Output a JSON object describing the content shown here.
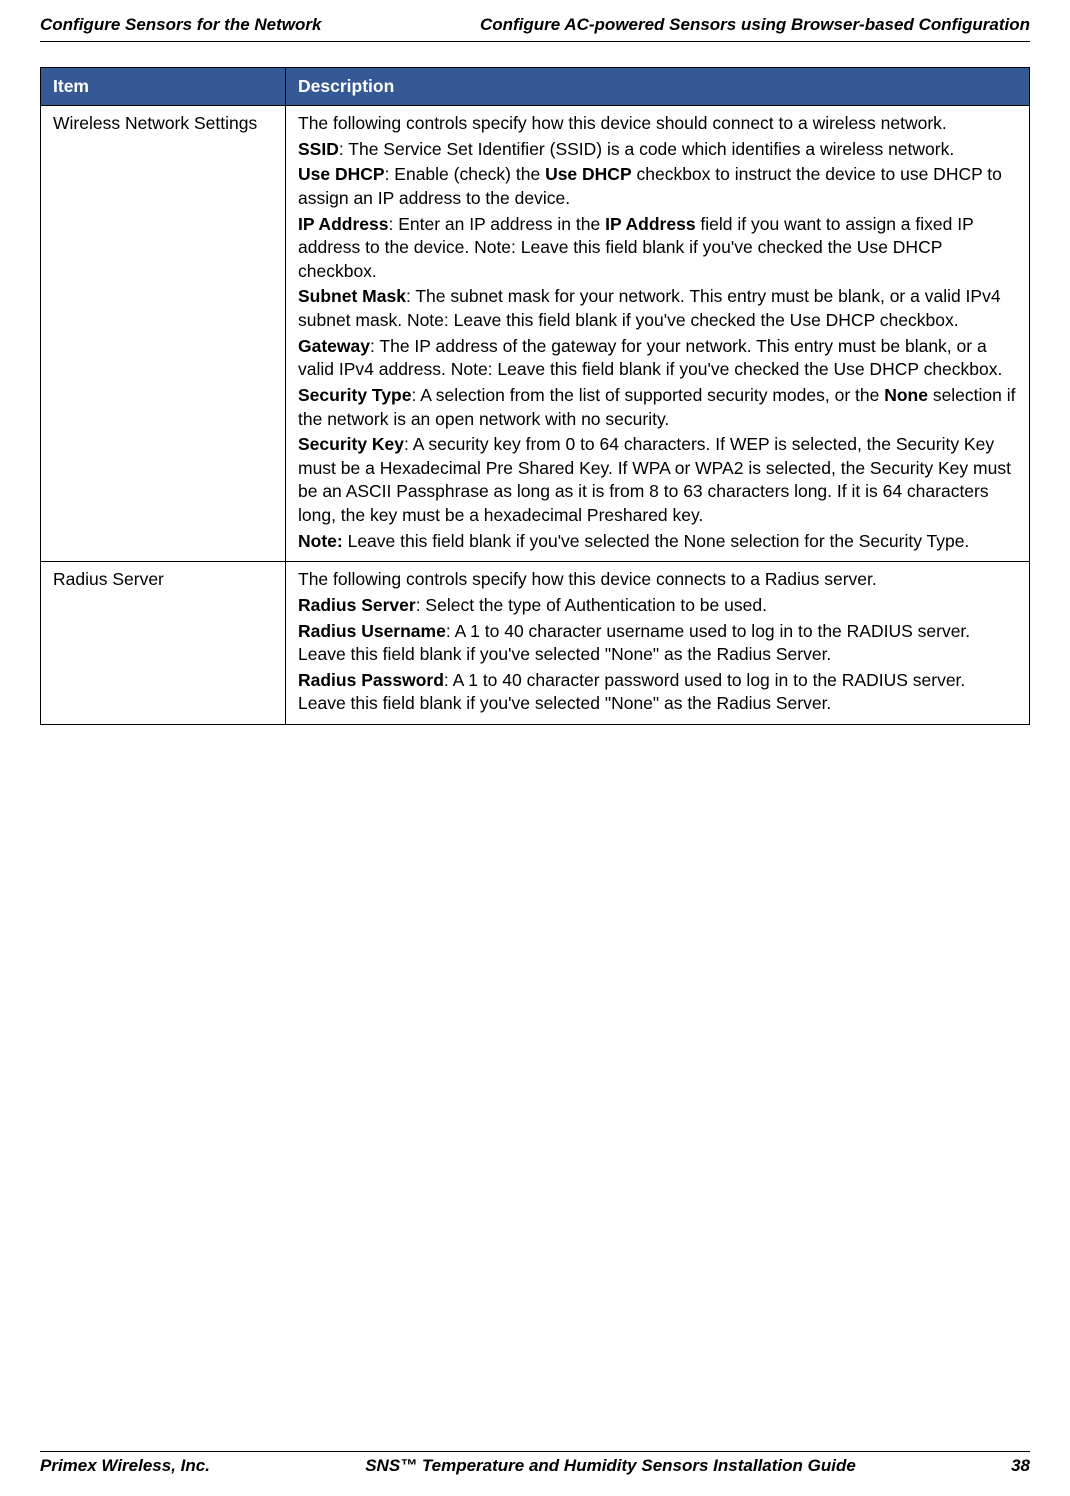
{
  "header": {
    "left": "Configure Sensors for the Network",
    "right": "Configure AC-powered Sensors using Browser-based Configuration"
  },
  "table": {
    "header_bg": "#355994",
    "header_color": "#ffffff",
    "border_color": "#000000",
    "columns": [
      "Item",
      "Description"
    ],
    "rows": [
      {
        "item": "Wireless Network Settings",
        "desc": {
          "intro": "The following controls specify how this device should connect to a wireless network.",
          "ssid_label": "SSID",
          "ssid_text": ": The Service Set Identifier (SSID) is a code which identifies a wireless network.",
          "dhcp_label": "Use DHCP",
          "dhcp_pre": ": Enable (check) the ",
          "dhcp_bold2": "Use DHCP",
          "dhcp_post": " checkbox to instruct the device to use DHCP to assign an IP address to the device.",
          "ip_label": "IP Address",
          "ip_pre": ": Enter an IP address in the ",
          "ip_bold2": "IP Address",
          "ip_post": " field if you want to assign a fixed IP address to the device. Note: Leave this field blank if you've checked the Use DHCP checkbox.",
          "subnet_label": "Subnet Mask",
          "subnet_text": ": The subnet mask for your network. This entry must be blank, or a valid IPv4 subnet mask. Note: Leave this field blank if you've checked the Use DHCP checkbox.",
          "gateway_label": "Gateway",
          "gateway_text": ": The IP address of the gateway for your network. This entry must be blank, or a valid IPv4 address. Note: Leave this field blank if you've checked the Use DHCP checkbox.",
          "sectype_label": "Security Type",
          "sectype_pre": ": A selection from the list of supported security modes, or the ",
          "sectype_bold2": "None",
          "sectype_post": " selection if the network is an open network with no security.",
          "seckey_label": "Security Key",
          "seckey_text": ": A security key from 0 to 64 characters. If WEP is selected, the Security Key must be a Hexadecimal Pre Shared Key. If WPA or WPA2 is selected, the Security Key must be an ASCII Passphrase as long as it is from 8 to 63 characters long. If it is 64 characters long, the key must be a hexadecimal Preshared key.",
          "note_label": "Note:",
          "note_text": " Leave this field blank if you've selected the None selection for the Security Type."
        }
      },
      {
        "item": "Radius Server",
        "desc": {
          "intro": "The following controls specify how this device connects to a Radius server.",
          "rs_label": "Radius Server",
          "rs_pre": ": Select ",
          "rs_mid": "the type of Authentication to be used.",
          "ru_label": "Radius Username",
          "ru_text": ": A 1 to 40 character username used to log in to the RADIUS server. Leave this field blank if you've selected \"None\" as the Radius Server.",
          "rp_label": "Radius Password",
          "rp_text": ": A 1 to 40 character password used to log in to the RADIUS server. Leave this field blank if you've selected \"None\" as the Radius Server."
        }
      }
    ]
  },
  "footer": {
    "company": "Primex Wireless, Inc.",
    "title": "SNS™ Temperature and Humidity Sensors Installation Guide",
    "page": "38"
  }
}
